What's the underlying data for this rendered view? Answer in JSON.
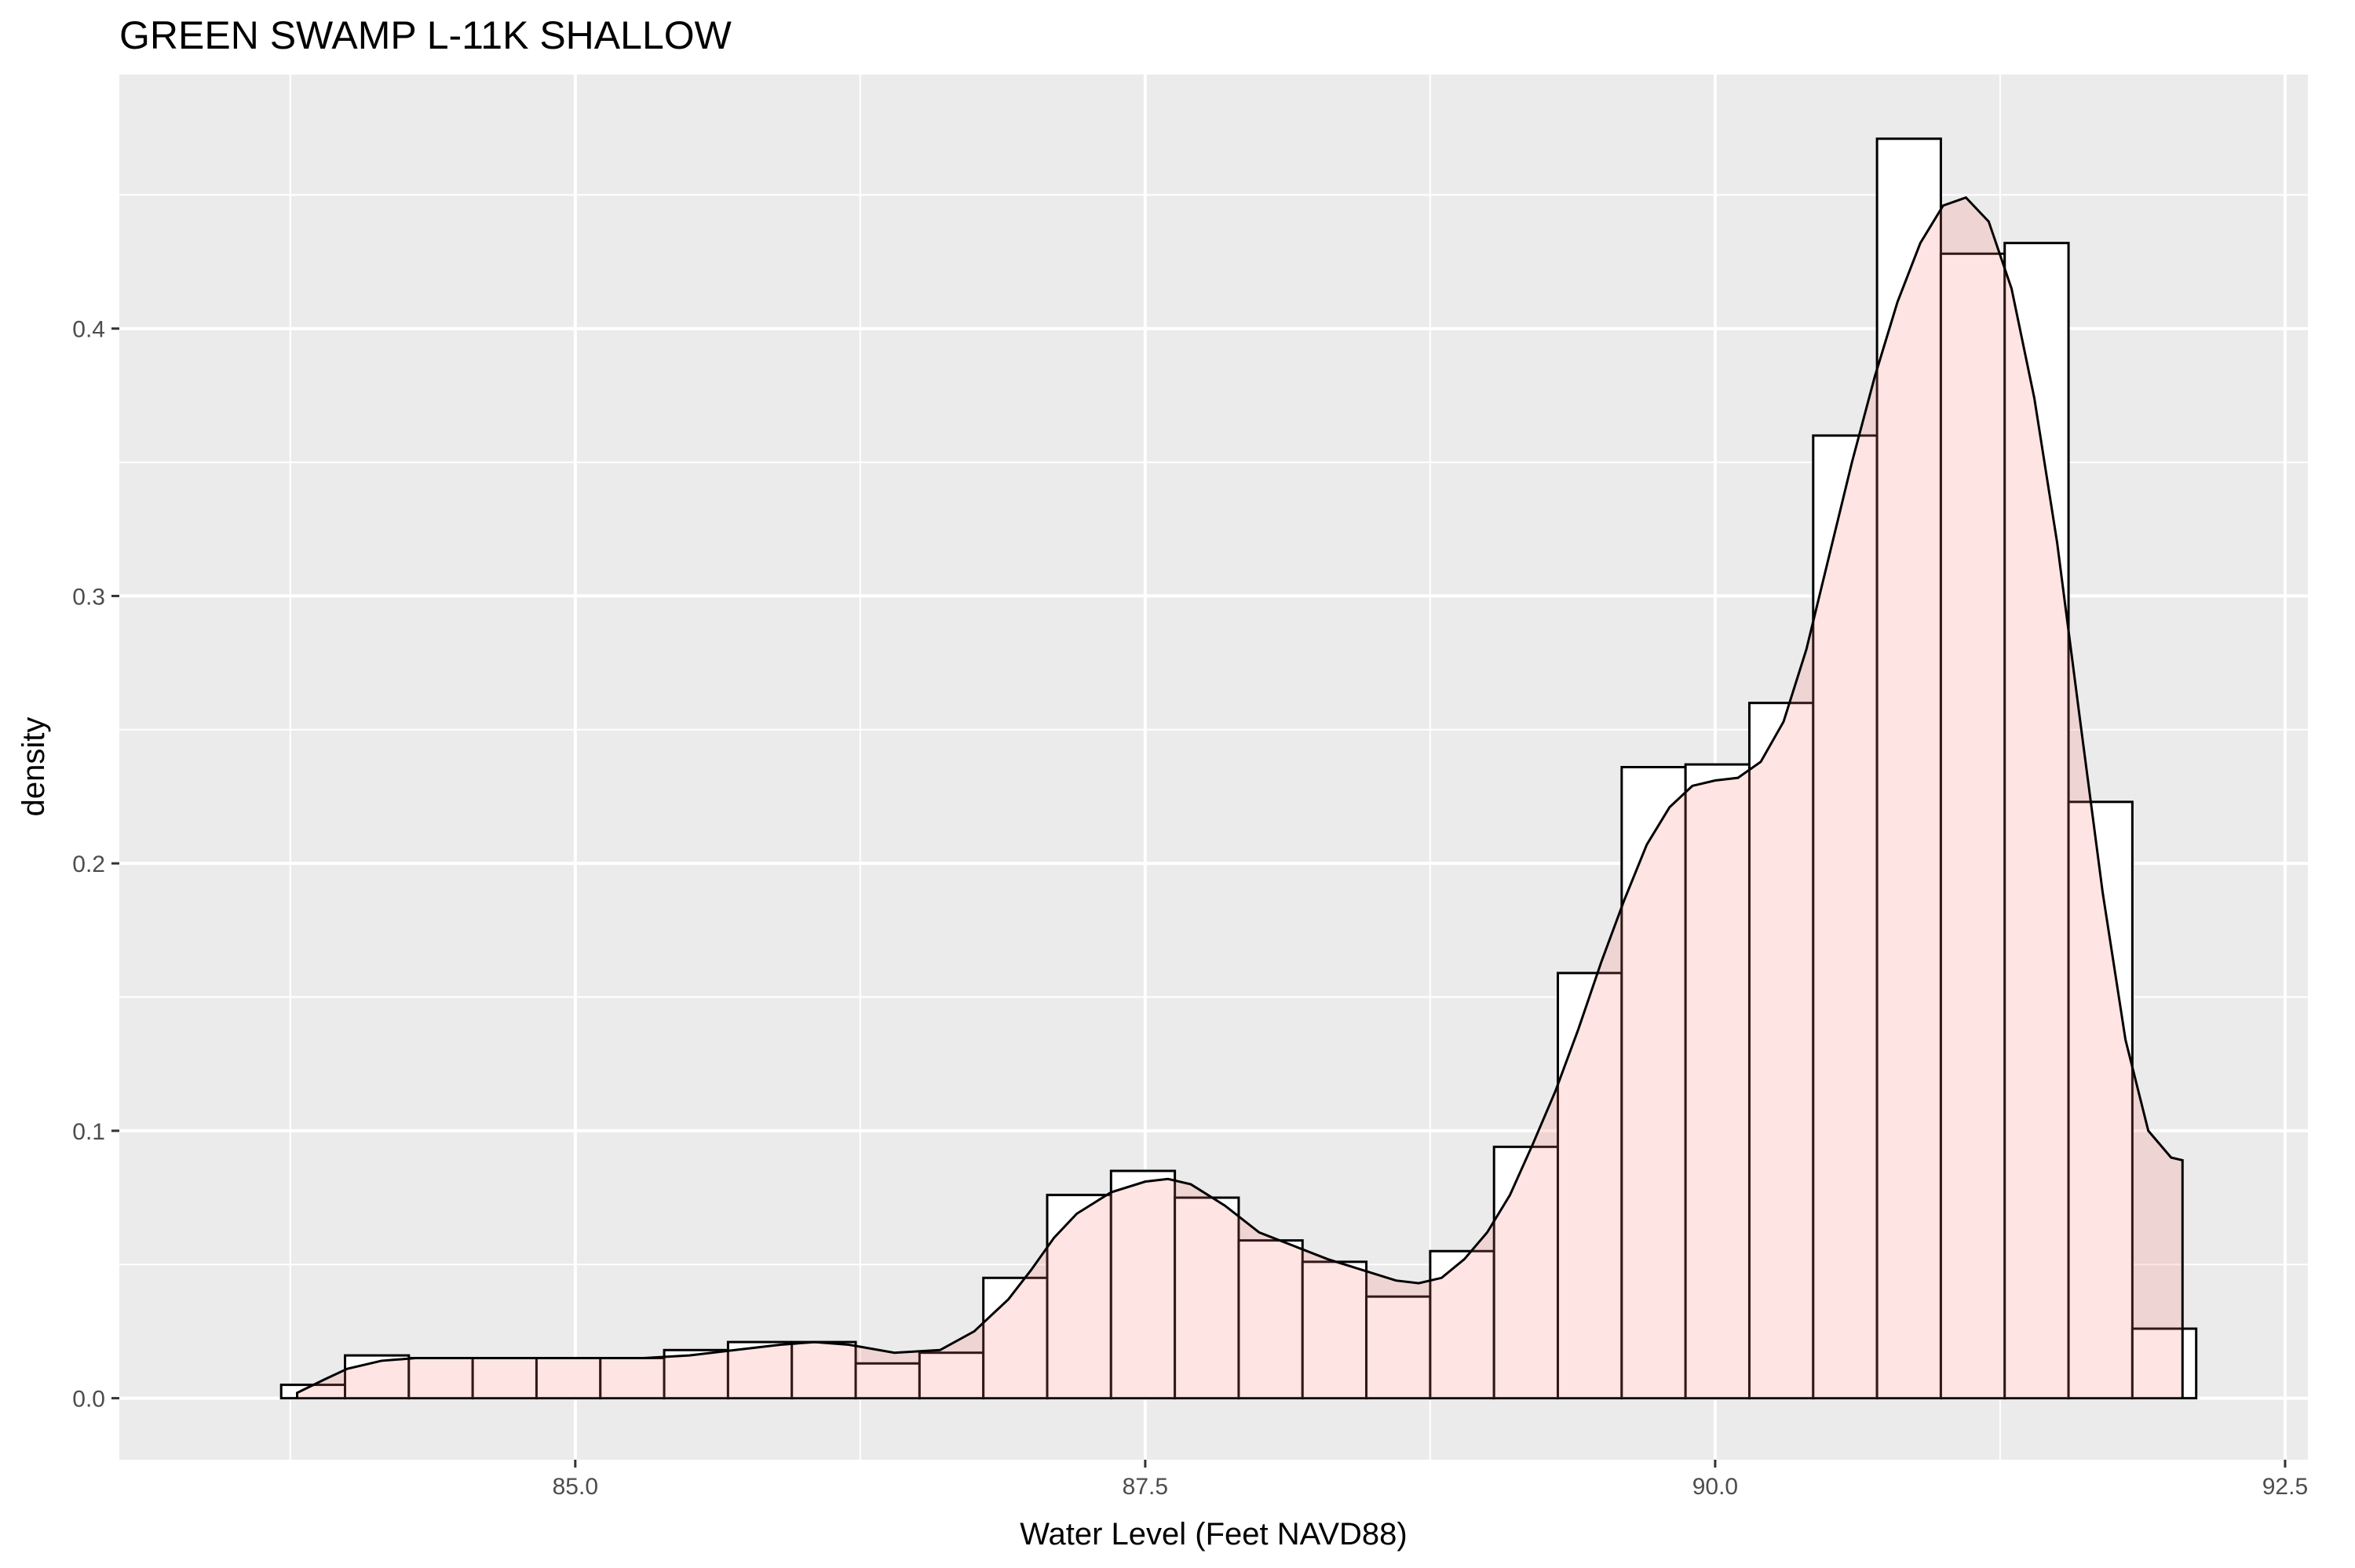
{
  "chart_data": {
    "type": "bar",
    "title": "GREEN SWAMP L-11K SHALLOW",
    "xlabel": "Water Level (Feet NAVD88)",
    "ylabel": "density",
    "xlim": [
      83.0,
      92.6
    ],
    "ylim": [
      -0.023,
      0.495
    ],
    "x_ticks": [
      85.0,
      87.5,
      90.0,
      92.5
    ],
    "x_tick_labels": [
      "85.0",
      "87.5",
      "90.0",
      "92.5"
    ],
    "y_ticks": [
      0.0,
      0.1,
      0.2,
      0.3,
      0.4
    ],
    "y_tick_labels": [
      "0.0",
      "0.1",
      "0.2",
      "0.3",
      "0.4"
    ],
    "grid": true,
    "legend": "none",
    "series": [
      {
        "kind": "histogram",
        "bin_edges": [
          83.71,
          83.99,
          84.27,
          84.55,
          84.83,
          85.11,
          85.39,
          85.67,
          85.95,
          86.23,
          86.51,
          86.79,
          87.07,
          87.35,
          87.63,
          87.91,
          88.19,
          88.47,
          88.75,
          89.03,
          89.31,
          89.59,
          89.87,
          90.15,
          90.43,
          90.71,
          90.99,
          91.27,
          91.55,
          91.83,
          92.11
        ],
        "values": [
          0.005,
          0.016,
          0.015,
          0.015,
          0.015,
          0.015,
          0.018,
          0.021,
          0.021,
          0.013,
          0.017,
          0.045,
          0.076,
          0.085,
          0.075,
          0.059,
          0.051,
          0.038,
          0.055,
          0.094,
          0.159,
          0.236,
          0.237,
          0.26,
          0.36,
          0.471,
          0.428,
          0.432,
          0.223,
          0.026
        ],
        "fill": "#ffffff",
        "outline": "#000000"
      },
      {
        "kind": "density",
        "x": [
          83.78,
          83.9,
          84.0,
          84.15,
          84.3,
          84.5,
          84.7,
          84.9,
          85.1,
          85.3,
          85.5,
          85.7,
          85.9,
          86.05,
          86.2,
          86.4,
          86.6,
          86.75,
          86.9,
          87.0,
          87.1,
          87.2,
          87.35,
          87.5,
          87.6,
          87.7,
          87.85,
          88.0,
          88.15,
          88.3,
          88.45,
          88.6,
          88.7,
          88.8,
          88.9,
          89.0,
          89.1,
          89.2,
          89.3,
          89.4,
          89.5,
          89.6,
          89.7,
          89.8,
          89.9,
          90.0,
          90.1,
          90.2,
          90.3,
          90.4,
          90.5,
          90.6,
          90.7,
          90.8,
          90.9,
          91.0,
          91.1,
          91.2,
          91.3,
          91.4,
          91.5,
          91.6,
          91.7,
          91.8,
          91.9,
          92.0,
          92.05
        ],
        "y": [
          0.002,
          0.007,
          0.011,
          0.014,
          0.015,
          0.015,
          0.015,
          0.015,
          0.015,
          0.015,
          0.016,
          0.018,
          0.02,
          0.021,
          0.02,
          0.017,
          0.018,
          0.025,
          0.037,
          0.048,
          0.06,
          0.069,
          0.077,
          0.081,
          0.082,
          0.08,
          0.072,
          0.062,
          0.057,
          0.052,
          0.048,
          0.044,
          0.043,
          0.045,
          0.052,
          0.062,
          0.076,
          0.095,
          0.115,
          0.138,
          0.163,
          0.186,
          0.207,
          0.221,
          0.229,
          0.231,
          0.232,
          0.238,
          0.253,
          0.28,
          0.315,
          0.35,
          0.382,
          0.41,
          0.432,
          0.446,
          0.449,
          0.44,
          0.415,
          0.374,
          0.32,
          0.254,
          0.189,
          0.134,
          0.1,
          0.09,
          0.089
        ],
        "fill": "#f8766d",
        "fill_opacity": 0.2,
        "outline": "#000000"
      }
    ]
  }
}
